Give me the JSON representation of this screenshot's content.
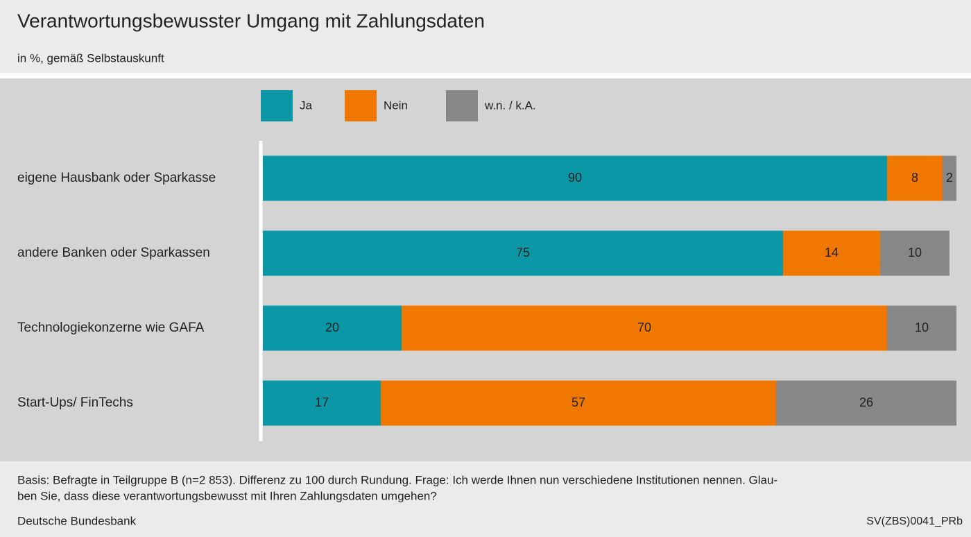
{
  "chart_data": {
    "type": "stacked_barh",
    "title": "Verantwortungsbewusster Umgang mit Zahlungsdaten",
    "subtitle": "in %, gemäß Selbstauskunft",
    "categories": [
      "eigene Hausbank oder Sparkasse",
      "andere Banken oder Sparkassen",
      "Technologiekonzerne wie GAFA",
      "Start-Ups/ FinTechs"
    ],
    "series": [
      {
        "name": "Ja",
        "color": "#0b97a6",
        "values": [
          90,
          75,
          20,
          17
        ]
      },
      {
        "name": "Nein",
        "color": "#f07800",
        "values": [
          8,
          14,
          70,
          57
        ]
      },
      {
        "name": "w.n. / k.A.",
        "color": "#878787",
        "values": [
          2,
          10,
          10,
          26
        ]
      }
    ],
    "notes": [
      "Basis: Befragte in Teilgruppe B (n=2 853). Differenz zu 100 durch Rundung. Frage: Ich werde Ihnen nun verschiedene Institutionen nennen. Glau-",
      "ben Sie, dass diese verantwortungsbewusst mit Ihren Zahlungsdaten umgehen?"
    ],
    "source": "Deutsche Bundesbank",
    "code": "SV(ZBS)0041_PRb"
  }
}
